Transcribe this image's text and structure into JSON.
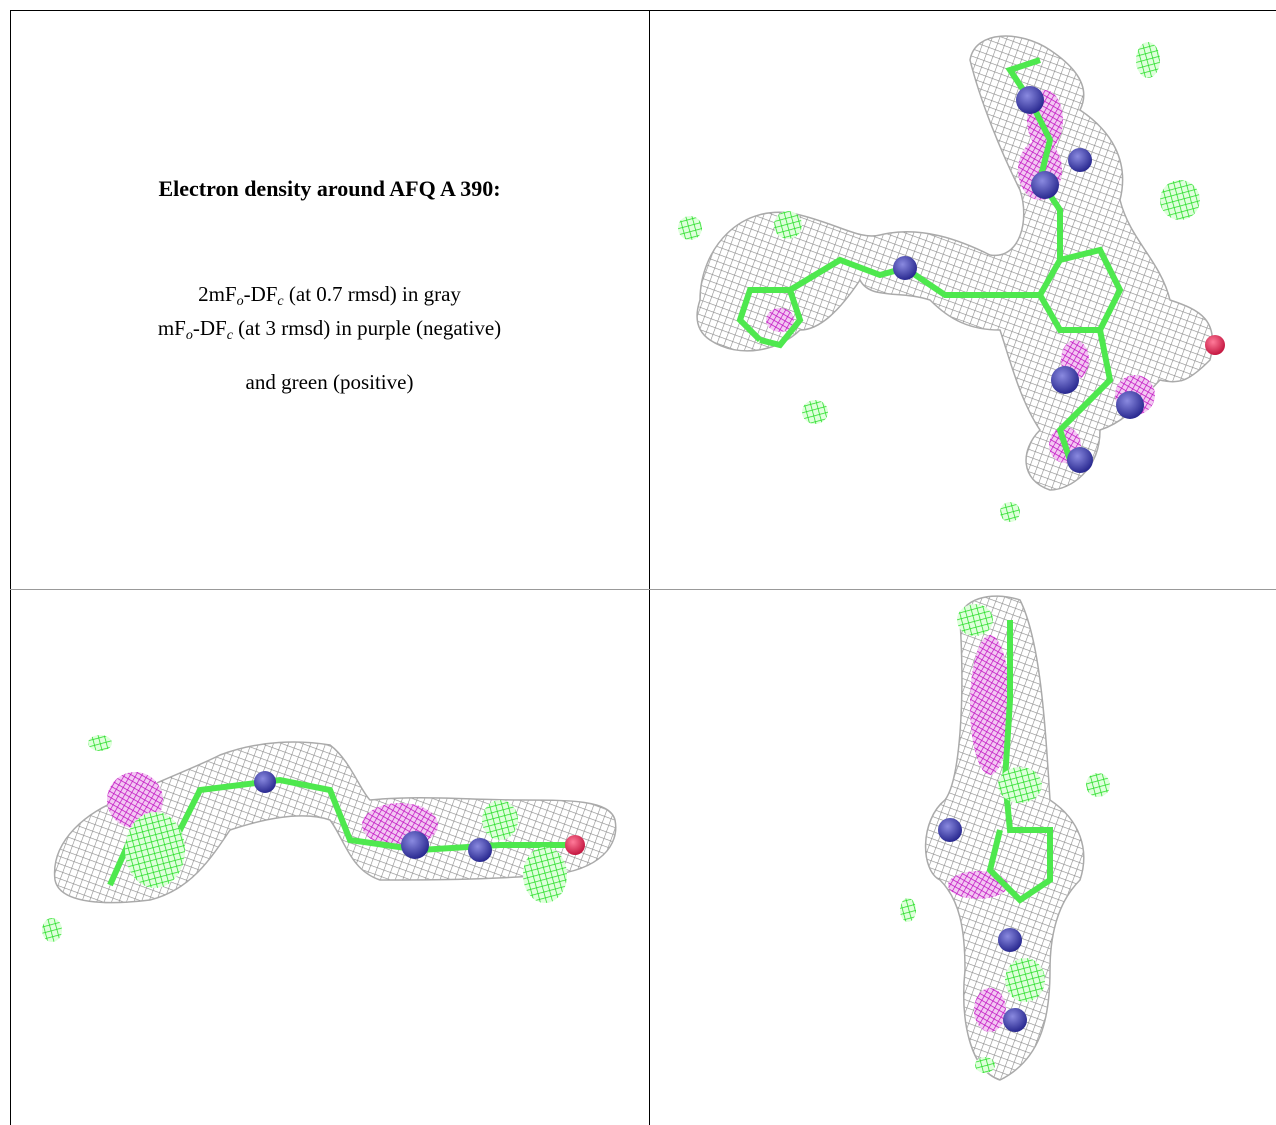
{
  "panel_title": "Electron density around AFQ A 390:",
  "legend": [
    [
      "2mF",
      "o",
      "-DF",
      "c",
      " (at 0.7 rmsd) in gray"
    ],
    [
      "mF",
      "o",
      "-DF",
      "c",
      " (at 3 rmsd) in purple (negative)"
    ],
    [
      "and green (positive)"
    ]
  ]
}
